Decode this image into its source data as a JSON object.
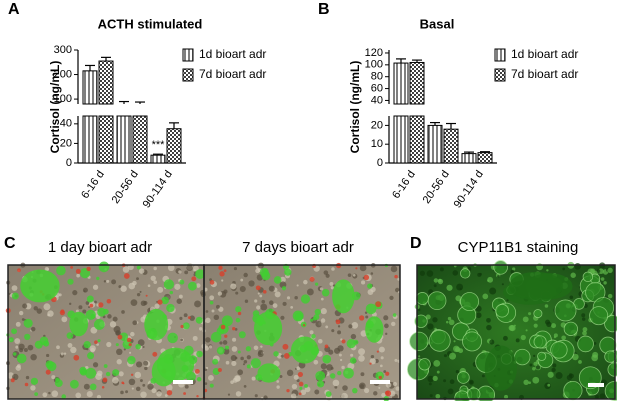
{
  "panel_labels": [
    "A",
    "B",
    "C",
    "D"
  ],
  "chart_data": [
    {
      "type": "bar",
      "title": "ACTH stimulated",
      "ylabel": "Cortisol (ng/mL)",
      "categories": [
        "6-16 d",
        "20-56 d",
        "90-114 d"
      ],
      "series": [
        {
          "name": "1d bioart adr",
          "color": "#7f7f7f",
          "values": [
            215,
            80,
            8
          ],
          "errors": [
            22,
            10,
            1
          ]
        },
        {
          "name": "7d bioart adr",
          "color": "#3f3f3f",
          "values": [
            255,
            80,
            35
          ],
          "errors": [
            15,
            8,
            6
          ]
        }
      ],
      "segments": [
        {
          "ylim": [
            0,
            48
          ],
          "yticks": [
            0,
            20,
            40
          ]
        },
        {
          "ylim": [
            80,
            300
          ],
          "yticks": [
            100,
            200,
            300
          ]
        }
      ],
      "annotations": [
        {
          "text": "***",
          "series": 0,
          "category": 2
        }
      ]
    },
    {
      "type": "bar",
      "title": "Basal",
      "ylabel": "Cortisol (ng/mL)",
      "categories": [
        "6-16 d",
        "20-56 d",
        "90-114 d"
      ],
      "series": [
        {
          "name": "1d bioart adr",
          "color": "#7f7f7f",
          "values": [
            103,
            20,
            5
          ],
          "errors": [
            7,
            1.5,
            0.8
          ]
        },
        {
          "name": "7d bioart adr",
          "color": "#3f3f3f",
          "values": [
            104,
            18,
            5.5
          ],
          "errors": [
            4,
            3,
            0.5
          ]
        }
      ],
      "segments": [
        {
          "ylim": [
            0,
            25
          ],
          "yticks": [
            0,
            10,
            20
          ]
        },
        {
          "ylim": [
            34,
            125
          ],
          "yticks": [
            40,
            60,
            80,
            100,
            120
          ]
        }
      ],
      "annotations": []
    }
  ],
  "images": [
    {
      "caption": "1 day bioart adr"
    },
    {
      "caption": "7 days bioart adr"
    },
    {
      "caption": "CYP11B1 staining"
    }
  ]
}
